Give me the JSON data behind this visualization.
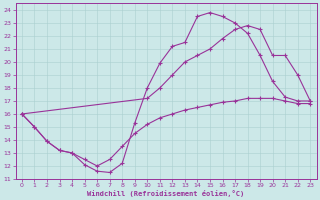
{
  "xlabel": "Windchill (Refroidissement éolien,°C)",
  "xlim": [
    -0.5,
    23.5
  ],
  "ylim": [
    11,
    24.5
  ],
  "xticks": [
    0,
    1,
    2,
    3,
    4,
    5,
    6,
    7,
    8,
    9,
    10,
    11,
    12,
    13,
    14,
    15,
    16,
    17,
    18,
    19,
    20,
    21,
    22,
    23
  ],
  "yticks": [
    11,
    12,
    13,
    14,
    15,
    16,
    17,
    18,
    19,
    20,
    21,
    22,
    23,
    24
  ],
  "bg_color": "#cce8e8",
  "grid_color": "#aad0d0",
  "line_color": "#993399",
  "line1_x": [
    0,
    1,
    2,
    3,
    4,
    5,
    6,
    7,
    8,
    9,
    10,
    11,
    12,
    13,
    14,
    15,
    16,
    17,
    18,
    19,
    20,
    21,
    22,
    23
  ],
  "line1_y": [
    16.0,
    15.0,
    13.9,
    13.2,
    13.0,
    12.1,
    11.6,
    11.5,
    12.2,
    15.3,
    18.0,
    19.9,
    21.2,
    21.5,
    23.5,
    23.8,
    23.5,
    23.0,
    22.2,
    20.5,
    18.5,
    17.3,
    17.0,
    17.0
  ],
  "line2_x": [
    0,
    10,
    11,
    12,
    13,
    14,
    15,
    16,
    17,
    18,
    19,
    20,
    21,
    22,
    23
  ],
  "line2_y": [
    16.0,
    17.2,
    18.0,
    19.0,
    20.0,
    20.5,
    21.0,
    21.8,
    22.5,
    22.8,
    22.5,
    20.5,
    20.5,
    19.0,
    17.0
  ],
  "line3_x": [
    0,
    1,
    2,
    3,
    4,
    5,
    6,
    7,
    8,
    9,
    10,
    11,
    12,
    13,
    14,
    15,
    16,
    17,
    18,
    19,
    20,
    21,
    22,
    23
  ],
  "line3_y": [
    16.0,
    15.0,
    13.9,
    13.2,
    13.0,
    12.5,
    12.0,
    12.5,
    13.5,
    14.5,
    15.2,
    15.7,
    16.0,
    16.3,
    16.5,
    16.7,
    16.9,
    17.0,
    17.2,
    17.2,
    17.2,
    17.0,
    16.8,
    16.8
  ]
}
